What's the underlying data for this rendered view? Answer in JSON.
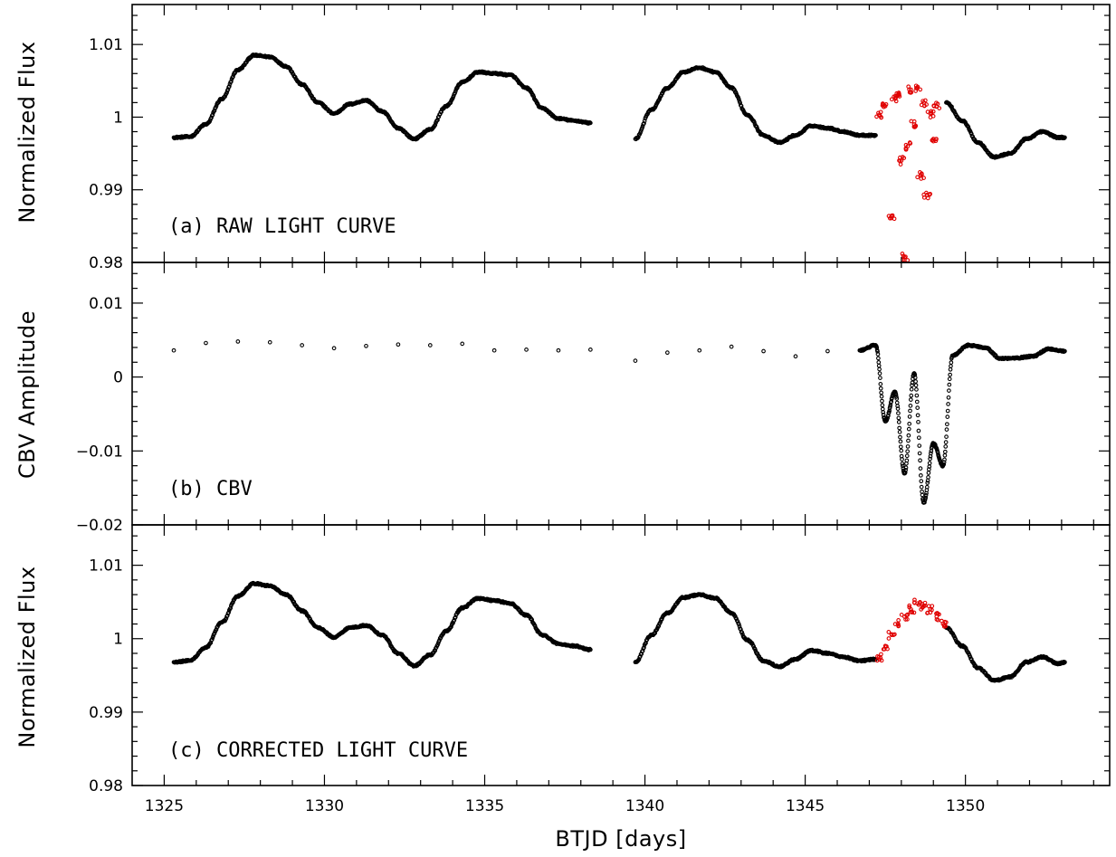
{
  "chart_data": [
    {
      "type": "scatter",
      "panel": "a",
      "annotation": "(a) RAW LIGHT CURVE",
      "xlabel": "",
      "ylabel": "Normalized Flux",
      "xlim": [
        1324,
        1354.5
      ],
      "ylim": [
        0.98,
        1.0155
      ],
      "yticks": [
        0.98,
        0.99,
        1.0,
        1.01
      ],
      "ytick_labels": [
        "0.98",
        "0.99",
        "1",
        "1.01"
      ],
      "colors": {
        "normal": "#000000",
        "flagged": "#e00000"
      },
      "series": [
        {
          "id": "normal",
          "x": [
            1325.3,
            1325.8,
            1326.3,
            1326.8,
            1327.3,
            1327.8,
            1328.3,
            1328.8,
            1329.3,
            1329.8,
            1330.3,
            1330.8,
            1331.3,
            1331.8,
            1332.3,
            1332.8,
            1333.3,
            1333.8,
            1334.3,
            1334.8,
            1335.3,
            1335.8,
            1336.3,
            1336.8,
            1337.3,
            1337.8,
            1338.3,
            1339.7,
            1340.2,
            1340.7,
            1341.2,
            1341.7,
            1342.2,
            1342.7,
            1343.2,
            1343.7,
            1344.2,
            1344.7,
            1345.2,
            1345.7,
            1346.2,
            1346.7,
            1347.2,
            1349.4,
            1349.9,
            1350.4,
            1350.9,
            1351.4,
            1351.9,
            1352.4,
            1352.9,
            1353.1
          ],
          "y": [
            0.9972,
            0.9973,
            0.999,
            1.0025,
            1.0065,
            1.0085,
            1.0083,
            1.007,
            1.0045,
            1.002,
            1.0005,
            1.0018,
            1.0023,
            1.0008,
            0.9985,
            0.997,
            0.9983,
            1.0015,
            1.0048,
            1.0062,
            1.006,
            1.0058,
            1.004,
            1.0012,
            0.9998,
            0.9995,
            0.9992,
            0.997,
            1.001,
            1.004,
            1.0062,
            1.0068,
            1.0062,
            1.004,
            1.0003,
            0.9975,
            0.9965,
            0.9975,
            0.9988,
            0.9985,
            0.998,
            0.9975,
            0.9975,
            1.002,
            0.9995,
            0.9965,
            0.9945,
            0.995,
            0.997,
            0.998,
            0.9972,
            0.9972
          ]
        },
        {
          "id": "flagged",
          "x": [
            1347.3,
            1347.5,
            1347.7,
            1347.8,
            1347.9,
            1348.0,
            1348.1,
            1348.2,
            1348.3,
            1348.4,
            1348.5,
            1348.6,
            1348.7,
            1348.8,
            1348.9,
            1349.0,
            1349.1
          ],
          "y": [
            1.0003,
            1.0015,
            0.9863,
            1.0025,
            1.0031,
            0.994,
            0.9807,
            0.996,
            1.0038,
            0.999,
            1.004,
            0.992,
            1.002,
            0.9893,
            1.0005,
            0.997,
            1.0015
          ]
        }
      ]
    },
    {
      "type": "scatter",
      "panel": "b",
      "annotation": "(b) CBV",
      "xlabel": "",
      "ylabel": "CBV Amplitude",
      "xlim": [
        1324,
        1354.5
      ],
      "ylim": [
        -0.02,
        0.0155
      ],
      "yticks": [
        -0.02,
        -0.01,
        0.0,
        0.01
      ],
      "ytick_labels": [
        "−0.02",
        "−0.01",
        "0",
        "0.01"
      ],
      "colors": {
        "normal": "#000000"
      },
      "series": [
        {
          "id": "normal",
          "x": [
            1325.3,
            1326.3,
            1327.3,
            1328.3,
            1329.3,
            1330.3,
            1331.3,
            1332.3,
            1333.3,
            1334.3,
            1335.3,
            1336.3,
            1337.3,
            1338.3,
            1339.7,
            1340.7,
            1341.7,
            1342.7,
            1343.7,
            1344.7,
            1345.7,
            1346.7,
            1347.2,
            1347.5,
            1347.8,
            1348.1,
            1348.4,
            1348.7,
            1349.0,
            1349.3,
            1349.6,
            1350.1,
            1350.6,
            1351.1,
            1351.6,
            1352.1,
            1352.6,
            1353.1
          ],
          "y": [
            0.0036,
            0.0046,
            0.0048,
            0.0047,
            0.0043,
            0.0039,
            0.0042,
            0.0044,
            0.0043,
            0.0045,
            0.0036,
            0.0037,
            0.0036,
            0.0037,
            0.0022,
            0.0033,
            0.0036,
            0.0041,
            0.0035,
            0.0028,
            0.0035,
            0.0036,
            0.0043,
            -0.006,
            -0.002,
            -0.013,
            0.0005,
            -0.017,
            -0.009,
            -0.012,
            0.0029,
            0.0043,
            0.004,
            0.0025,
            0.0026,
            0.0028,
            0.0038,
            0.0035
          ]
        }
      ]
    },
    {
      "type": "scatter",
      "panel": "c",
      "annotation": "(c) CORRECTED LIGHT CURVE",
      "xlabel": "BTJD [days]",
      "ylabel": "Normalized Flux",
      "xlim": [
        1324,
        1354.5
      ],
      "ylim": [
        0.98,
        1.0155
      ],
      "yticks": [
        0.98,
        0.99,
        1.0,
        1.01
      ],
      "ytick_labels": [
        "0.98",
        "0.99",
        "1",
        "1.01"
      ],
      "xticks": [
        1325,
        1330,
        1335,
        1340,
        1345,
        1350
      ],
      "xtick_labels": [
        "1325",
        "1330",
        "1335",
        "1340",
        "1345",
        "1350"
      ],
      "colors": {
        "normal": "#000000",
        "flagged": "#e00000"
      },
      "series": [
        {
          "id": "normal",
          "x": [
            1325.3,
            1325.8,
            1326.3,
            1326.8,
            1327.3,
            1327.8,
            1328.3,
            1328.8,
            1329.3,
            1329.8,
            1330.3,
            1330.8,
            1331.3,
            1331.8,
            1332.3,
            1332.8,
            1333.3,
            1333.8,
            1334.3,
            1334.8,
            1335.3,
            1335.8,
            1336.3,
            1336.8,
            1337.3,
            1337.8,
            1338.3,
            1339.7,
            1340.2,
            1340.7,
            1341.2,
            1341.7,
            1342.2,
            1342.7,
            1343.2,
            1343.7,
            1344.2,
            1344.7,
            1345.2,
            1345.7,
            1346.2,
            1346.7,
            1347.2,
            1349.4,
            1349.9,
            1350.4,
            1350.9,
            1351.4,
            1351.9,
            1352.4,
            1352.9,
            1353.1
          ],
          "y": [
            0.9968,
            0.997,
            0.9988,
            1.0022,
            1.0058,
            1.0075,
            1.0072,
            1.006,
            1.0038,
            1.0015,
            1.0002,
            1.0015,
            1.0018,
            1.0005,
            0.998,
            0.9963,
            0.9978,
            1.001,
            1.0042,
            1.0055,
            1.0052,
            1.0048,
            1.0032,
            1.0005,
            0.9993,
            0.999,
            0.9985,
            0.9968,
            1.0005,
            1.0035,
            1.0056,
            1.006,
            1.0055,
            1.0035,
            0.9998,
            0.997,
            0.9962,
            0.9972,
            0.9984,
            0.998,
            0.9975,
            0.997,
            0.9972,
            1.0015,
            0.999,
            0.996,
            0.9943,
            0.9948,
            0.9968,
            0.9975,
            0.9966,
            0.9968
          ]
        },
        {
          "id": "flagged",
          "x": [
            1347.3,
            1347.5,
            1347.7,
            1347.9,
            1348.1,
            1348.3,
            1348.5,
            1348.7,
            1348.9,
            1349.1,
            1349.3
          ],
          "y": [
            0.9975,
            0.999,
            1.0005,
            1.002,
            1.003,
            1.004,
            1.0048,
            1.0045,
            1.004,
            1.003,
            1.002
          ]
        }
      ]
    }
  ]
}
